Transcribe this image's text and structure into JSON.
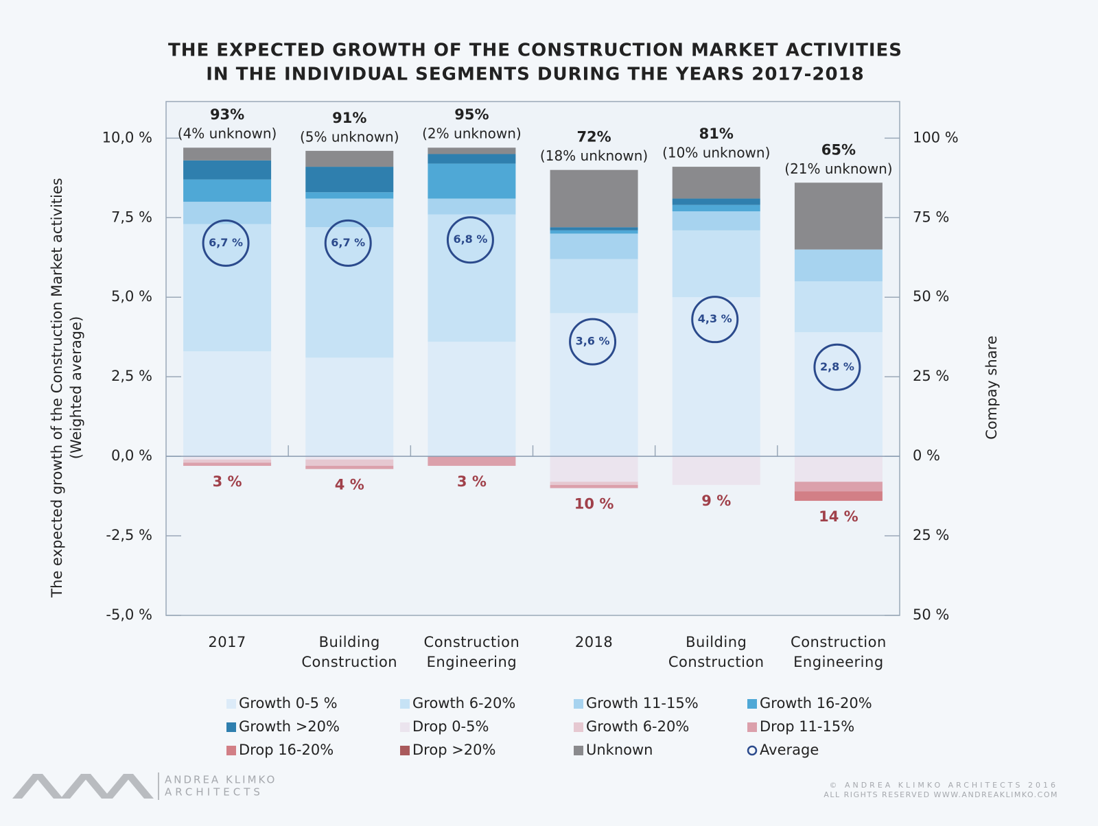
{
  "chart_data": {
    "type": "bar",
    "title": [
      "THE EXPECTED GROWTH OF THE CONSTRUCTION MARKET ACTIVITIES",
      "IN THE INDIVIDUAL SEGMENTS DURING THE YEARS 2017-2018"
    ],
    "y_label": [
      "The expected growth of the Construction Market activities",
      "(Weighted average)"
    ],
    "y2_label": "Compay share",
    "categories": [
      "2017",
      "Building Construction",
      "Construction Engineering",
      "2018",
      "Building Construction",
      "Construction Engineering"
    ],
    "growth_labels": [
      "93%",
      "91%",
      "95%",
      "72%",
      "81%",
      "65%"
    ],
    "unknown_labels": [
      "(4% unknown)",
      "(5% unknown)",
      "(2% unknown)",
      "(18% unknown)",
      "(10% unknown)",
      "(21% unknown)"
    ],
    "drop_labels": [
      "3 %",
      "4 %",
      "3 %",
      "10 %",
      "9 %",
      "14 %"
    ],
    "ylim": [
      -5,
      11.15
    ],
    "yticks": [
      {
        "value": 10,
        "label": "10,0 %"
      },
      {
        "value": 7.5,
        "label": "7,5 %"
      },
      {
        "value": 5,
        "label": "5,0 %"
      },
      {
        "value": 2.5,
        "label": "2,5 %"
      },
      {
        "value": 0,
        "label": "0,0 %"
      },
      {
        "value": -2.5,
        "label": "-2,5 %"
      },
      {
        "value": -5,
        "label": "-5,0 %"
      }
    ],
    "y2lim": [
      -50,
      111.5
    ],
    "y2ticks": [
      {
        "value": 100,
        "label": "100 %"
      },
      {
        "value": 75,
        "label": "75 %"
      },
      {
        "value": 50,
        "label": "50 %"
      },
      {
        "value": 25,
        "label": "25 %"
      },
      {
        "value": 0,
        "label": "0 %"
      },
      {
        "value": -25,
        "label": "25 %"
      },
      {
        "value": -50,
        "label": "50 %"
      }
    ],
    "series": [
      {
        "name": "Growth 0-5 %",
        "color": "#dcebf8",
        "axis": "y2",
        "stack": "up",
        "values": [
          33,
          31,
          36,
          45,
          50,
          39
        ]
      },
      {
        "name": "Growth 6-20%",
        "color": "#c6e2f5",
        "axis": "y2",
        "stack": "up",
        "values": [
          40,
          41,
          40,
          17,
          21,
          16
        ]
      },
      {
        "name": "Growth 11-15%",
        "color": "#a7d3ef",
        "axis": "y2",
        "stack": "up",
        "values": [
          7,
          9,
          5,
          8,
          6,
          10
        ]
      },
      {
        "name": "Growth 16-20%",
        "color": "#4fa8d6",
        "axis": "y2",
        "stack": "up",
        "values": [
          7,
          2,
          11,
          1,
          2,
          0
        ]
      },
      {
        "name": "Growth  >20%",
        "color": "#2f7fae",
        "axis": "y2",
        "stack": "up",
        "values": [
          6,
          8,
          3,
          1,
          2,
          0
        ]
      },
      {
        "name": "Drop 0-5%",
        "color": "#ebe4ee",
        "axis": "y2",
        "stack": "down",
        "values": [
          1,
          1,
          0,
          8,
          9,
          8
        ]
      },
      {
        "name": "Growth 6-20%",
        "color": "#e6c8d1",
        "axis": "y2",
        "stack": "down",
        "values": [
          1,
          2,
          0,
          1,
          0,
          0
        ]
      },
      {
        "name": "Drop 11-15%",
        "color": "#dba0ab",
        "axis": "y2",
        "stack": "down",
        "values": [
          1,
          1,
          3,
          1,
          0,
          3
        ]
      },
      {
        "name": "Drop 16-20%",
        "color": "#d27f86",
        "axis": "y2",
        "stack": "down",
        "values": [
          0,
          0,
          0,
          0,
          0,
          3
        ]
      },
      {
        "name": "Drop  >20%",
        "color": "#a95a5c",
        "axis": "y2",
        "stack": "down",
        "values": [
          0,
          0,
          0,
          0,
          0,
          0
        ]
      },
      {
        "name": "Unknown",
        "color": "#8a8a8d",
        "axis": "y2",
        "stack": "up",
        "values": [
          4,
          5,
          2,
          18,
          10,
          21
        ]
      },
      {
        "name": "Average",
        "color": "#2b4a8c",
        "axis": "y",
        "marker": "circle",
        "values": [
          6.7,
          6.7,
          6.8,
          3.6,
          4.3,
          2.8
        ],
        "value_labels": [
          "6,7 %",
          "6,7 %",
          "6,8 %",
          "3,6 %",
          "4,3 %",
          "2,8 %"
        ]
      }
    ],
    "footer": {
      "logo_name": "ANDREA KLIMKO",
      "logo_sub": "ARCHITECTS",
      "copyright": "© ANDREA KLIMKO ARCHITECTS 2016",
      "rights": "ALL RIGHTS RESERVED WWW.ANDREAKLIMKO.COM"
    }
  }
}
